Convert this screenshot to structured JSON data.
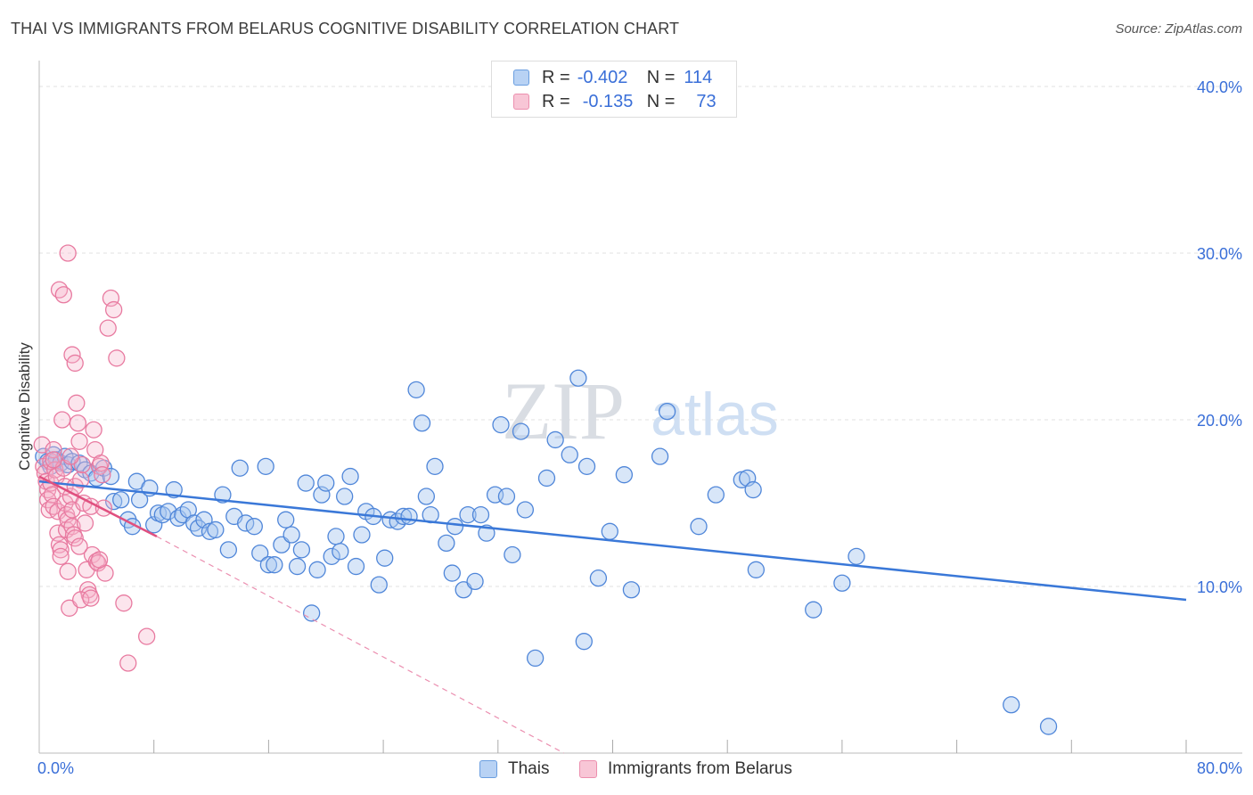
{
  "title": "THAI VS IMMIGRANTS FROM BELARUS COGNITIVE DISABILITY CORRELATION CHART",
  "source": "Source: ZipAtlas.com",
  "watermark": {
    "zip": "ZIP",
    "atlas": "atlas"
  },
  "colors": {
    "blue": "#3a78d8",
    "blue_fill": "#a8c8f0",
    "pink": "#e0507f",
    "pink_fill": "#f5b5cb",
    "grid": "#e2e2e2",
    "tick_text": "#3a6fd8"
  },
  "legend": {
    "rows": [
      {
        "r_label": "R =",
        "r_value": "-0.402",
        "n_label": "N =",
        "n_value": "114"
      },
      {
        "r_label": "R =",
        "r_value": "-0.135",
        "n_label": "N =",
        "n_value": "73"
      }
    ]
  },
  "bottom_legend": {
    "series1": "Thais",
    "series2": "Immigrants from Belarus"
  },
  "x_labels": {
    "min": "0.0%",
    "max": "80.0%"
  },
  "chart_data": {
    "type": "scatter",
    "title": "THAI VS IMMIGRANTS FROM BELARUS COGNITIVE DISABILITY CORRELATION CHART",
    "xlabel": "",
    "ylabel": "Cognitive Disability",
    "xlim": [
      0,
      80
    ],
    "ylim": [
      0,
      40
    ],
    "y_ticks": [
      10,
      20,
      30,
      40
    ],
    "y_tick_labels": [
      "10.0%",
      "20.0%",
      "30.0%",
      "40.0%"
    ],
    "series": [
      {
        "name": "Thais",
        "color": "#3a78d8",
        "trend": {
          "x": [
            0,
            80
          ],
          "y": [
            16.3,
            9.2
          ],
          "style": "solid"
        },
        "points": [
          [
            0.3,
            17.8
          ],
          [
            0.6,
            17.5
          ],
          [
            0.8,
            17.2
          ],
          [
            1.0,
            17.9
          ],
          [
            1.2,
            17.6
          ],
          [
            1.5,
            17.4
          ],
          [
            1.8,
            17.8
          ],
          [
            2.0,
            17.3
          ],
          [
            2.3,
            17.5
          ],
          [
            2.8,
            17.4
          ],
          [
            3.2,
            17.0
          ],
          [
            3.6,
            16.8
          ],
          [
            4.0,
            16.5
          ],
          [
            4.5,
            17.1
          ],
          [
            5.0,
            16.6
          ],
          [
            5.2,
            15.1
          ],
          [
            5.7,
            15.2
          ],
          [
            6.2,
            14.0
          ],
          [
            6.5,
            13.6
          ],
          [
            6.8,
            16.3
          ],
          [
            7.0,
            15.2
          ],
          [
            7.7,
            15.9
          ],
          [
            8.0,
            13.7
          ],
          [
            8.3,
            14.4
          ],
          [
            8.6,
            14.3
          ],
          [
            9.0,
            14.5
          ],
          [
            9.4,
            15.8
          ],
          [
            9.7,
            14.1
          ],
          [
            10.0,
            14.3
          ],
          [
            10.4,
            14.6
          ],
          [
            10.8,
            13.8
          ],
          [
            11.1,
            13.5
          ],
          [
            11.5,
            14.0
          ],
          [
            11.9,
            13.3
          ],
          [
            12.3,
            13.4
          ],
          [
            12.8,
            15.5
          ],
          [
            13.2,
            12.2
          ],
          [
            13.6,
            14.2
          ],
          [
            14.0,
            17.1
          ],
          [
            14.4,
            13.8
          ],
          [
            15.0,
            13.6
          ],
          [
            15.4,
            12.0
          ],
          [
            15.8,
            17.2
          ],
          [
            16.0,
            11.3
          ],
          [
            16.4,
            11.3
          ],
          [
            16.9,
            12.5
          ],
          [
            17.2,
            14.0
          ],
          [
            17.6,
            13.1
          ],
          [
            18.0,
            11.2
          ],
          [
            18.3,
            12.2
          ],
          [
            18.6,
            16.2
          ],
          [
            19.0,
            8.4
          ],
          [
            19.4,
            11.0
          ],
          [
            19.7,
            15.5
          ],
          [
            20.0,
            16.2
          ],
          [
            20.4,
            11.8
          ],
          [
            20.7,
            13.0
          ],
          [
            21.0,
            12.1
          ],
          [
            21.3,
            15.4
          ],
          [
            21.7,
            16.6
          ],
          [
            22.1,
            11.2
          ],
          [
            22.5,
            13.1
          ],
          [
            22.8,
            14.5
          ],
          [
            23.3,
            14.2
          ],
          [
            23.7,
            10.1
          ],
          [
            24.1,
            11.7
          ],
          [
            24.5,
            14.0
          ],
          [
            25.0,
            13.9
          ],
          [
            25.4,
            14.2
          ],
          [
            25.8,
            14.2
          ],
          [
            26.3,
            21.8
          ],
          [
            26.7,
            19.8
          ],
          [
            27.0,
            15.4
          ],
          [
            27.3,
            14.3
          ],
          [
            27.6,
            17.2
          ],
          [
            28.4,
            12.6
          ],
          [
            28.8,
            10.8
          ],
          [
            29.0,
            13.6
          ],
          [
            29.6,
            9.8
          ],
          [
            29.9,
            14.3
          ],
          [
            30.4,
            10.3
          ],
          [
            30.8,
            14.3
          ],
          [
            31.2,
            13.2
          ],
          [
            31.8,
            15.5
          ],
          [
            32.2,
            19.7
          ],
          [
            32.6,
            15.4
          ],
          [
            33.0,
            11.9
          ],
          [
            33.6,
            19.3
          ],
          [
            33.9,
            14.6
          ],
          [
            34.6,
            5.7
          ],
          [
            35.4,
            16.5
          ],
          [
            36.0,
            18.8
          ],
          [
            37.0,
            17.9
          ],
          [
            37.6,
            22.5
          ],
          [
            38.0,
            6.7
          ],
          [
            38.2,
            17.2
          ],
          [
            39.0,
            10.5
          ],
          [
            39.8,
            13.3
          ],
          [
            40.8,
            16.7
          ],
          [
            41.3,
            9.8
          ],
          [
            43.3,
            17.8
          ],
          [
            43.8,
            20.5
          ],
          [
            46.0,
            13.6
          ],
          [
            47.2,
            15.5
          ],
          [
            49.0,
            16.4
          ],
          [
            49.4,
            16.5
          ],
          [
            49.8,
            15.8
          ],
          [
            50.0,
            11.0
          ],
          [
            54.0,
            8.6
          ],
          [
            56.0,
            10.2
          ],
          [
            57.0,
            11.8
          ],
          [
            67.8,
            2.9
          ],
          [
            70.4,
            1.6
          ]
        ]
      },
      {
        "name": "Immigrants from Belarus",
        "color": "#e0507f",
        "trend": {
          "x": [
            0,
            8.2
          ],
          "y": [
            16.6,
            13.0
          ],
          "style": "solid",
          "extend_to": [
            36.6,
            0
          ],
          "extend_style": "dashed"
        },
        "points": [
          [
            0.2,
            18.5
          ],
          [
            0.3,
            17.2
          ],
          [
            0.4,
            16.8
          ],
          [
            0.5,
            16.3
          ],
          [
            0.6,
            15.8
          ],
          [
            0.6,
            15.2
          ],
          [
            0.7,
            14.6
          ],
          [
            0.8,
            17.5
          ],
          [
            0.8,
            16.2
          ],
          [
            0.9,
            15.5
          ],
          [
            1.0,
            14.8
          ],
          [
            1.0,
            18.2
          ],
          [
            1.1,
            17.0
          ],
          [
            1.2,
            16.6
          ],
          [
            1.3,
            14.5
          ],
          [
            1.3,
            13.2
          ],
          [
            1.4,
            12.5
          ],
          [
            1.5,
            12.2
          ],
          [
            1.5,
            11.8
          ],
          [
            1.6,
            20.0
          ],
          [
            1.7,
            17.1
          ],
          [
            1.8,
            16.0
          ],
          [
            1.8,
            15.0
          ],
          [
            1.9,
            14.3
          ],
          [
            1.9,
            13.4
          ],
          [
            2.0,
            14.0
          ],
          [
            2.0,
            10.9
          ],
          [
            2.1,
            8.7
          ],
          [
            2.2,
            15.4
          ],
          [
            2.3,
            14.6
          ],
          [
            2.3,
            13.6
          ],
          [
            2.4,
            13.1
          ],
          [
            2.5,
            12.9
          ],
          [
            2.5,
            16.0
          ],
          [
            2.6,
            21.0
          ],
          [
            2.7,
            19.8
          ],
          [
            2.8,
            18.7
          ],
          [
            2.9,
            16.4
          ],
          [
            3.0,
            17.3
          ],
          [
            3.1,
            15.0
          ],
          [
            3.2,
            13.8
          ],
          [
            3.3,
            11.0
          ],
          [
            3.4,
            9.8
          ],
          [
            3.5,
            9.5
          ],
          [
            3.6,
            14.8
          ],
          [
            3.7,
            11.9
          ],
          [
            3.8,
            19.4
          ],
          [
            3.9,
            18.2
          ],
          [
            4.0,
            11.5
          ],
          [
            4.1,
            11.4
          ],
          [
            4.2,
            17.2
          ],
          [
            4.3,
            17.4
          ],
          [
            4.4,
            16.7
          ],
          [
            4.5,
            14.7
          ],
          [
            4.6,
            10.8
          ],
          [
            4.8,
            25.5
          ],
          [
            5.0,
            27.3
          ],
          [
            5.2,
            26.6
          ],
          [
            5.4,
            23.7
          ],
          [
            1.4,
            27.8
          ],
          [
            1.7,
            27.5
          ],
          [
            2.0,
            30.0
          ],
          [
            2.3,
            23.9
          ],
          [
            2.5,
            23.4
          ],
          [
            2.2,
            17.8
          ],
          [
            2.8,
            12.4
          ],
          [
            2.9,
            9.2
          ],
          [
            3.6,
            9.3
          ],
          [
            4.2,
            11.6
          ],
          [
            5.9,
            9.0
          ],
          [
            6.2,
            5.4
          ],
          [
            7.5,
            7.0
          ],
          [
            1.0,
            17.6
          ]
        ]
      }
    ]
  }
}
